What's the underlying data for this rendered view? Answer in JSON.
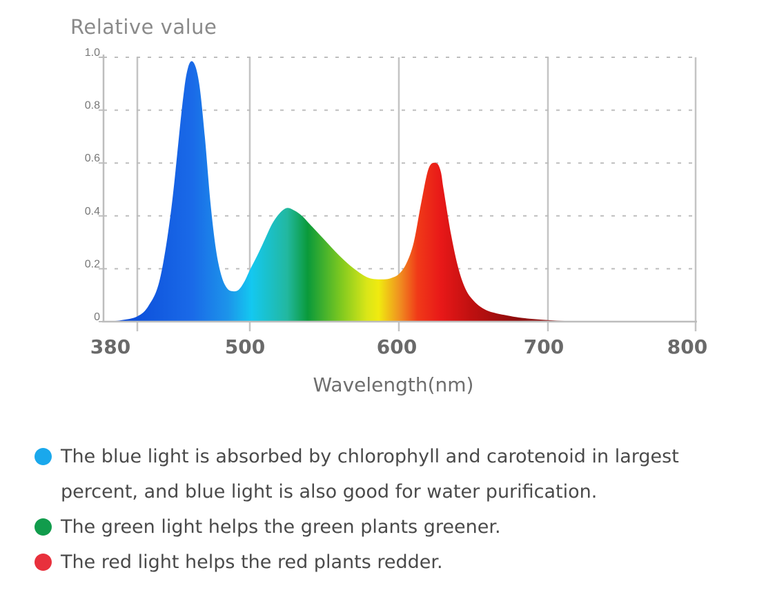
{
  "chart_data": {
    "type": "area",
    "ylabel": "Relative value",
    "xlabel": "Wavelength(nm)",
    "x_ticks": [
      "380",
      "500",
      "600",
      "700",
      "800"
    ],
    "y_ticks": [
      "0",
      "0.2",
      "0.4",
      "0.6",
      "0.8",
      "1.0"
    ],
    "xlim": [
      380,
      800
    ],
    "ylim": [
      0,
      1.0
    ],
    "grid": "dashed horizontal, solid vertical at x ticks",
    "series": [
      {
        "x": [
          380,
          390,
          400,
          410,
          420,
          430,
          440,
          445,
          450,
          455,
          460,
          465,
          470,
          475,
          480,
          485,
          490,
          495,
          500,
          505,
          510,
          515,
          520,
          525,
          530,
          535,
          540,
          550,
          560,
          570,
          580,
          590,
          595,
          600,
          605,
          610,
          615,
          620,
          625,
          628,
          630,
          635,
          640,
          645,
          650,
          655,
          660,
          665,
          670,
          680,
          690,
          700,
          710,
          720,
          730,
          740
        ],
        "values": [
          0.0,
          0.005,
          0.02,
          0.06,
          0.16,
          0.42,
          0.82,
          0.96,
          0.98,
          0.9,
          0.7,
          0.45,
          0.27,
          0.17,
          0.125,
          0.115,
          0.12,
          0.15,
          0.195,
          0.25,
          0.31,
          0.37,
          0.41,
          0.43,
          0.42,
          0.4,
          0.37,
          0.31,
          0.25,
          0.2,
          0.165,
          0.16,
          0.165,
          0.18,
          0.22,
          0.3,
          0.45,
          0.58,
          0.6,
          0.57,
          0.5,
          0.33,
          0.2,
          0.12,
          0.08,
          0.055,
          0.04,
          0.032,
          0.026,
          0.016,
          0.01,
          0.006,
          0.003,
          0.0015,
          0.0005,
          0.0
        ]
      }
    ],
    "colors": {
      "blue": "#1a5ee8",
      "cyan": "#14c8f0",
      "green": "#0a9a3a",
      "yellow": "#f0ea10",
      "orange": "#f09020",
      "red": "#e81818",
      "dark_red": "#8c0c0c"
    }
  },
  "legend": [
    {
      "text_line1": "The blue light is absorbed by chlorophyll and carotenoid in largest",
      "text_line2": "percent, and blue light is also good for water purification.",
      "color": "#1aa8ec"
    },
    {
      "text_line1": "The green light helps the green plants greener.",
      "color": "#119c4c"
    },
    {
      "text_line1": "The red light helps the red plants redder.",
      "color": "#e8303c"
    }
  ]
}
